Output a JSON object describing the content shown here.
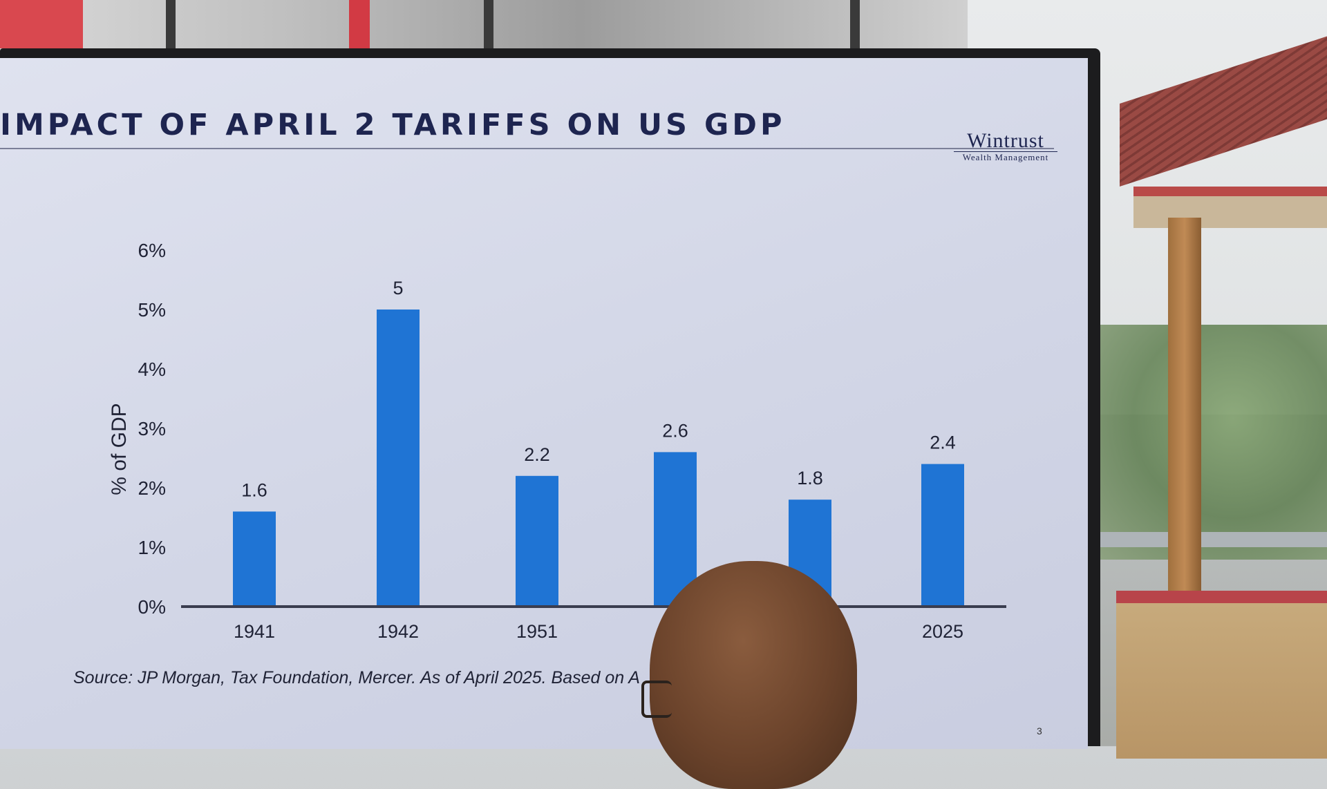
{
  "slide": {
    "title": "IMPACT OF APRIL 2 TARIFFS ON US GDP",
    "logo_main": "Wintrust",
    "logo_sub": "Wealth Management",
    "source": "Source: JP Morgan, Tax Foundation, Mercer. As of April 2025. Based on A",
    "slide_number": "3"
  },
  "chart_data": {
    "type": "bar",
    "categories": [
      "1941",
      "1942",
      "1951",
      "",
      "",
      "2025"
    ],
    "values": [
      1.6,
      5,
      2.2,
      2.6,
      1.8,
      2.4
    ],
    "data_labels": [
      "1.6",
      "5",
      "2.2",
      "2.6",
      "1.8",
      "2.4"
    ],
    "ylabel": "% of GDP",
    "yticks": [
      "0%",
      "1%",
      "2%",
      "3%",
      "4%",
      "5%",
      "6%"
    ],
    "ylim": [
      0,
      6
    ],
    "bar_color": "#1f74d4",
    "grid": false
  },
  "colors": {
    "title": "#1e2550",
    "bar": "#1f74d4",
    "axis": "#3a3d4f"
  }
}
